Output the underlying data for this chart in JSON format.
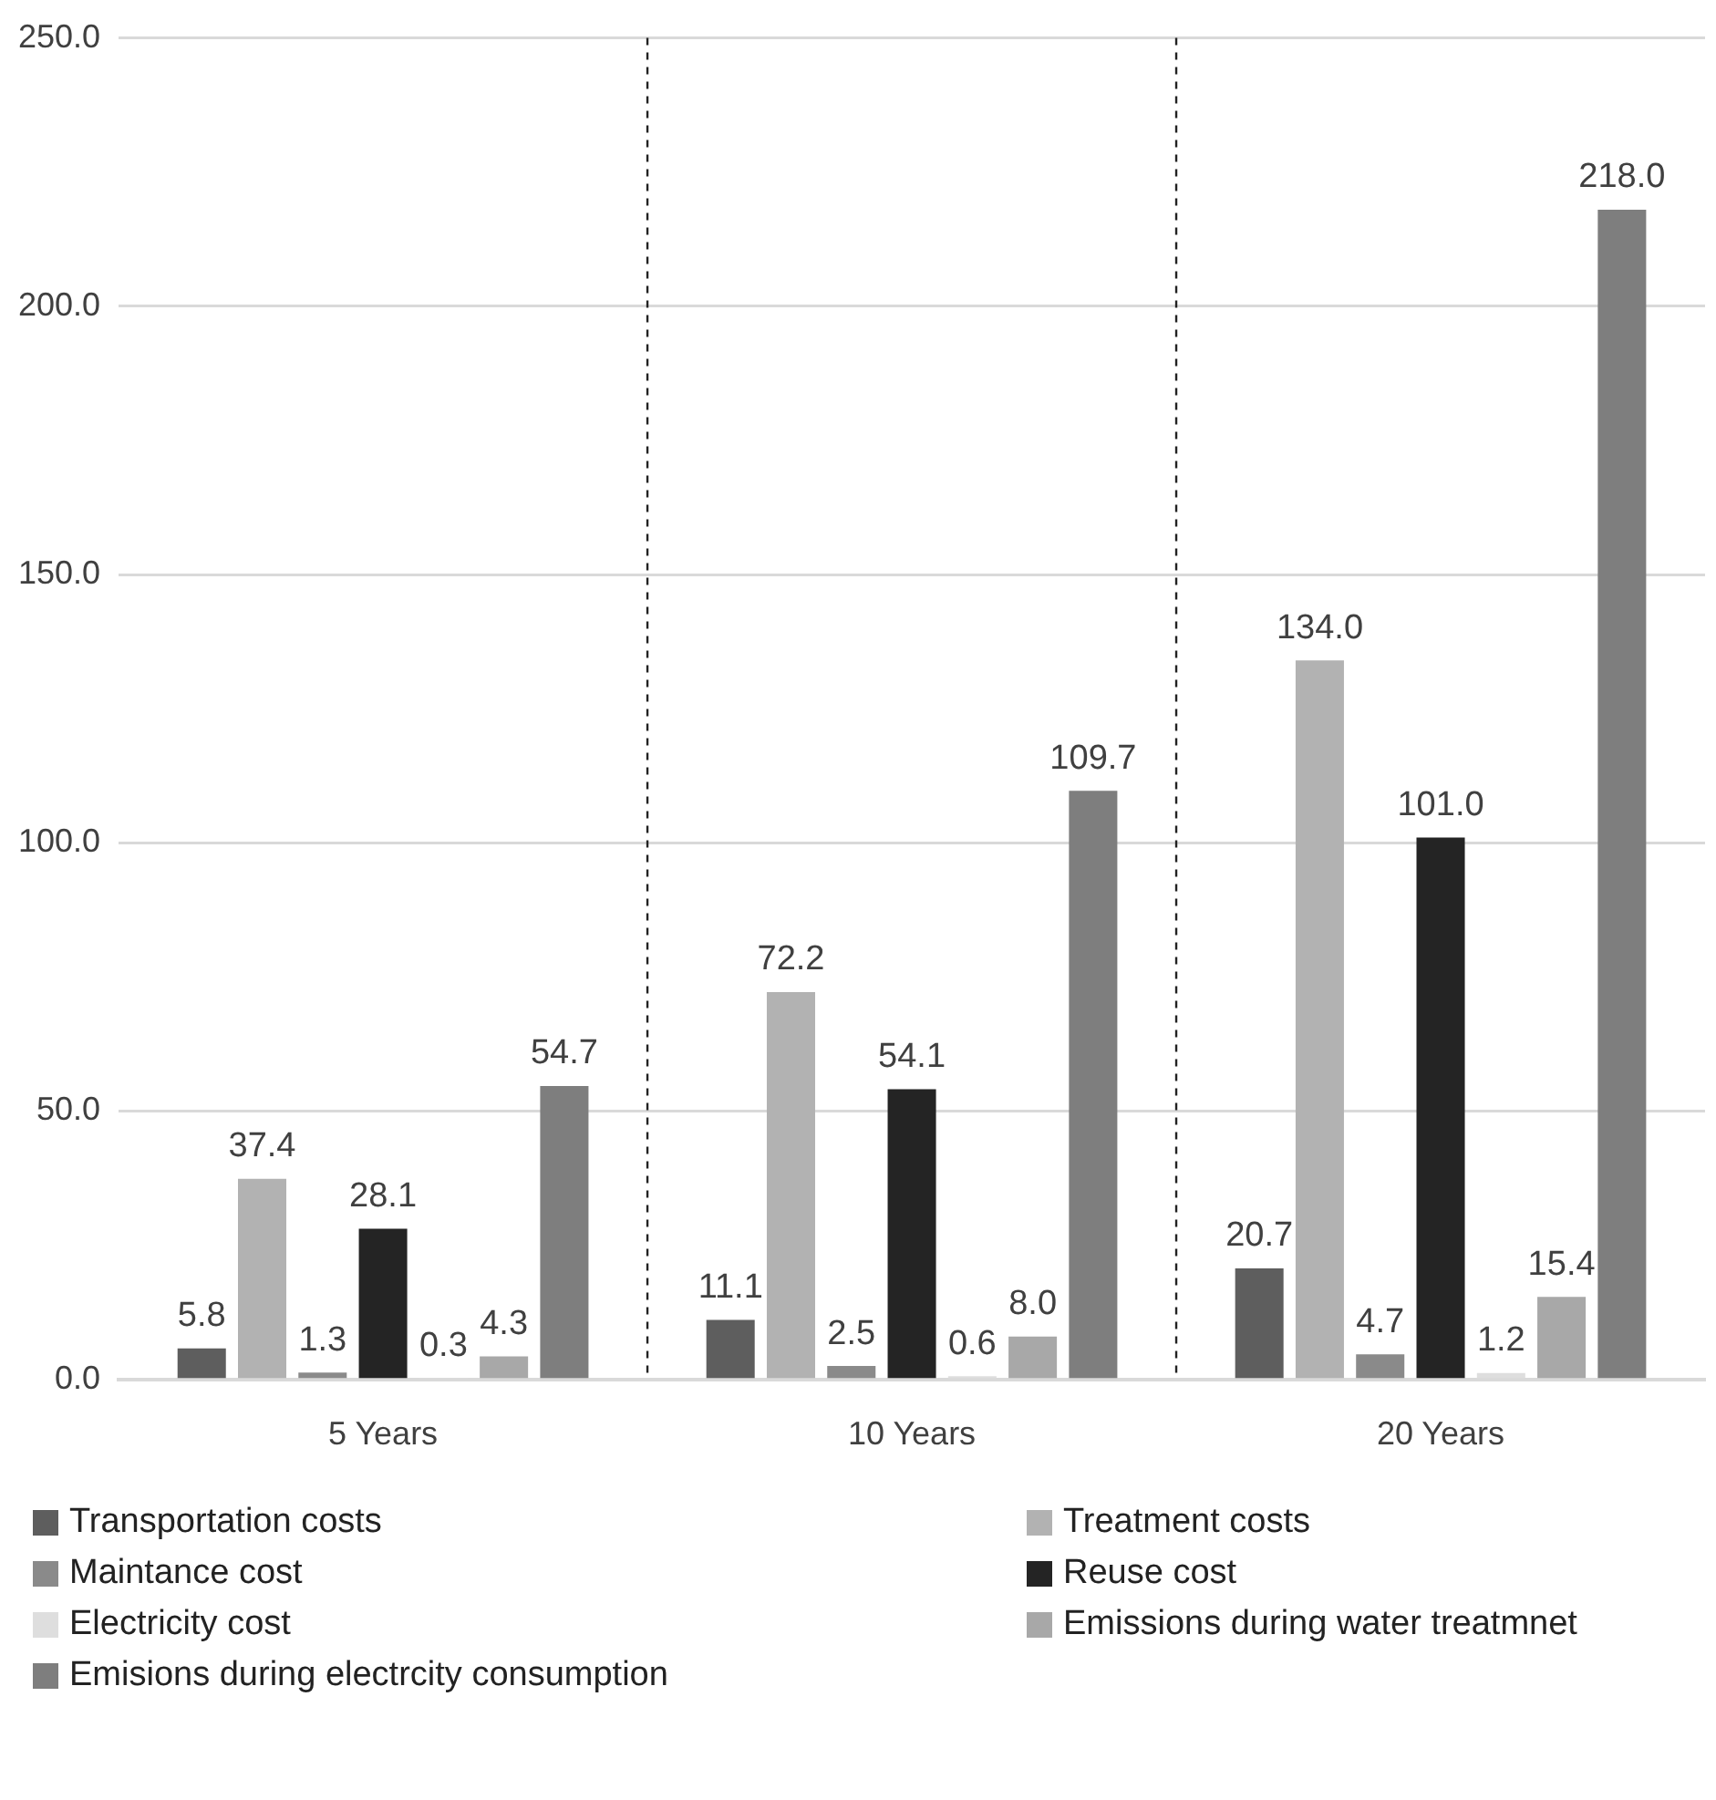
{
  "chart_data": {
    "type": "bar",
    "categories": [
      "5 Years",
      "10 Years",
      "20 Years"
    ],
    "series": [
      {
        "name": "Transportation costs",
        "color": "#5e5e5e",
        "values": [
          5.8,
          11.1,
          20.7
        ],
        "value_labels": [
          "5.8",
          "11.1",
          "20.7"
        ]
      },
      {
        "name": "Treatment costs",
        "color": "#b2b2b2",
        "values": [
          37.4,
          72.2,
          134.0
        ],
        "value_labels": [
          "37.4",
          "72.2",
          "134.0"
        ]
      },
      {
        "name": "Maintance cost",
        "color": "#8a8a8a",
        "values": [
          1.3,
          2.5,
          4.7
        ],
        "value_labels": [
          "1.3",
          "2.5",
          "4.7"
        ]
      },
      {
        "name": "Reuse cost",
        "color": "#242424",
        "values": [
          28.1,
          54.1,
          101.0
        ],
        "value_labels": [
          "28.1",
          "54.1",
          "101.0"
        ]
      },
      {
        "name": "Electricity cost",
        "color": "#dedede",
        "values": [
          0.3,
          0.6,
          1.2
        ],
        "value_labels": [
          "0.3",
          "0.6",
          "1.2"
        ]
      },
      {
        "name": "Emissions during water treatmnet",
        "color": "#a8a8a8",
        "values": [
          4.3,
          8.0,
          15.4
        ],
        "value_labels": [
          "4.3",
          "8.0",
          "15.4"
        ]
      },
      {
        "name": "Emisions during electrcity consumption",
        "color": "#7e7e7e",
        "values": [
          54.7,
          109.7,
          218.0
        ],
        "value_labels": [
          "54.7",
          "109.7",
          "218.0"
        ]
      }
    ],
    "ylim": [
      0,
      250
    ],
    "yticks": [
      {
        "value": 0,
        "label": "0.0"
      },
      {
        "value": 50,
        "label": "50.0"
      },
      {
        "value": 100,
        "label": "100.0"
      },
      {
        "value": 150,
        "label": "150.0"
      },
      {
        "value": 200,
        "label": "200.0"
      },
      {
        "value": 250,
        "label": "250.0"
      }
    ],
    "grid": true,
    "legend": "bottom"
  }
}
